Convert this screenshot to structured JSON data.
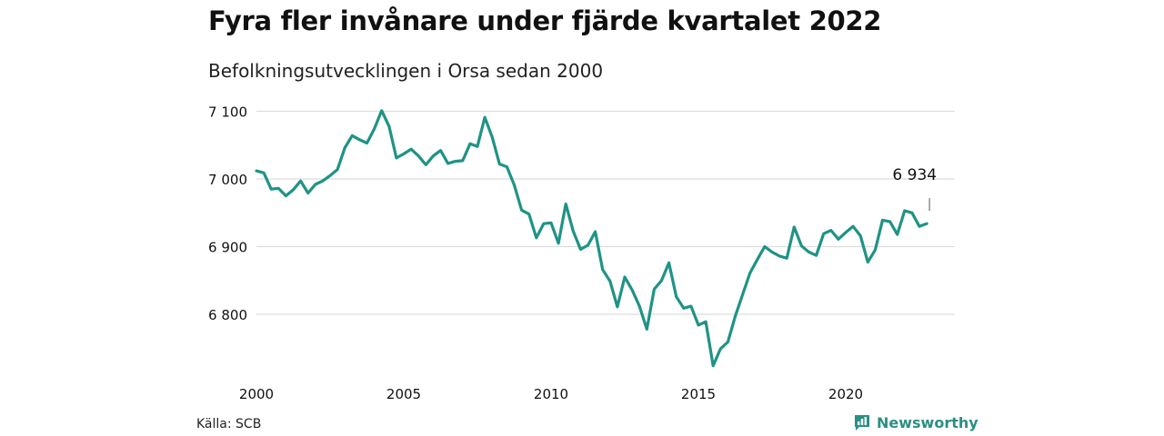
{
  "title": "Fyra fler invånare under fjärde kvartalet 2022",
  "subtitle": "Befolkningsutvecklingen i Orsa sedan 2000",
  "source": "Källa: SCB",
  "brand": {
    "name": "Newsworthy",
    "icon": "newsworthy-logo-icon"
  },
  "colors": {
    "line": "#1f9385",
    "grid": "#dddddd",
    "brand": "#2b8f83"
  },
  "chart_data": {
    "type": "line",
    "title": "Fyra fler invånare under fjärde kvartalet 2022",
    "subtitle": "Befolkningsutvecklingen i Orsa sedan 2000",
    "xlabel": "",
    "ylabel": "",
    "xlim": [
      2000,
      2023.25
    ],
    "ylim": [
      6715,
      7110
    ],
    "x_ticks": [
      2000,
      2005,
      2010,
      2015,
      2020
    ],
    "x_tick_labels": [
      "2000",
      "2005",
      "2010",
      "2015",
      "2020"
    ],
    "y_ticks": [
      6800,
      6900,
      7000,
      7100
    ],
    "y_tick_labels": [
      "6 800",
      "6 900",
      "7 000",
      "7 100"
    ],
    "grid": true,
    "annotation": {
      "x": 2022.75,
      "text": "6 934"
    },
    "x": [
      2000.0,
      2000.25,
      2000.5,
      2000.75,
      2001.0,
      2001.25,
      2001.5,
      2001.75,
      2002.0,
      2002.25,
      2002.5,
      2002.75,
      2003.0,
      2003.25,
      2003.5,
      2003.75,
      2004.0,
      2004.25,
      2004.5,
      2004.75,
      2005.0,
      2005.25,
      2005.5,
      2005.75,
      2006.0,
      2006.25,
      2006.5,
      2006.75,
      2007.0,
      2007.25,
      2007.5,
      2007.75,
      2008.0,
      2008.25,
      2008.5,
      2008.75,
      2009.0,
      2009.25,
      2009.5,
      2009.75,
      2010.0,
      2010.25,
      2010.5,
      2010.75,
      2011.0,
      2011.25,
      2011.5,
      2011.75,
      2012.0,
      2012.25,
      2012.5,
      2012.75,
      2013.0,
      2013.25,
      2013.5,
      2013.75,
      2014.0,
      2014.25,
      2014.5,
      2014.75,
      2015.0,
      2015.25,
      2015.5,
      2015.75,
      2016.0,
      2016.25,
      2016.5,
      2016.75,
      2017.0,
      2017.25,
      2017.5,
      2017.75,
      2018.0,
      2018.25,
      2018.5,
      2018.75,
      2019.0,
      2019.25,
      2019.5,
      2019.75,
      2020.0,
      2020.25,
      2020.5,
      2020.75,
      2021.0,
      2021.25,
      2021.5,
      2021.75,
      2022.0,
      2022.25,
      2022.5,
      2022.75
    ],
    "series": [
      {
        "values": [
          7012,
          7009,
          6985,
          6986,
          6975,
          6984,
          6997,
          6979,
          6992,
          6997,
          7005,
          7014,
          7046,
          7064,
          7058,
          7053,
          7074,
          7101,
          7078,
          7031,
          7037,
          7044,
          7034,
          7021,
          7034,
          7042,
          7023,
          7026,
          7027,
          7052,
          7048,
          7091,
          7062,
          7022,
          7018,
          6991,
          6954,
          6948,
          6913,
          6934,
          6935,
          6905,
          6963,
          6923,
          6896,
          6902,
          6922,
          6866,
          6849,
          6811,
          6855,
          6836,
          6812,
          6778,
          6837,
          6850,
          6876,
          6826,
          6809,
          6812,
          6784,
          6789,
          6724,
          6749,
          6759,
          6797,
          6829,
          6861,
          6881,
          6900,
          6892,
          6886,
          6883,
          6929,
          6901,
          6892,
          6887,
          6919,
          6924,
          6911,
          6921,
          6930,
          6916,
          6877,
          6895,
          6939,
          6937,
          6918,
          6953,
          6950,
          6930,
          6934
        ]
      }
    ]
  }
}
